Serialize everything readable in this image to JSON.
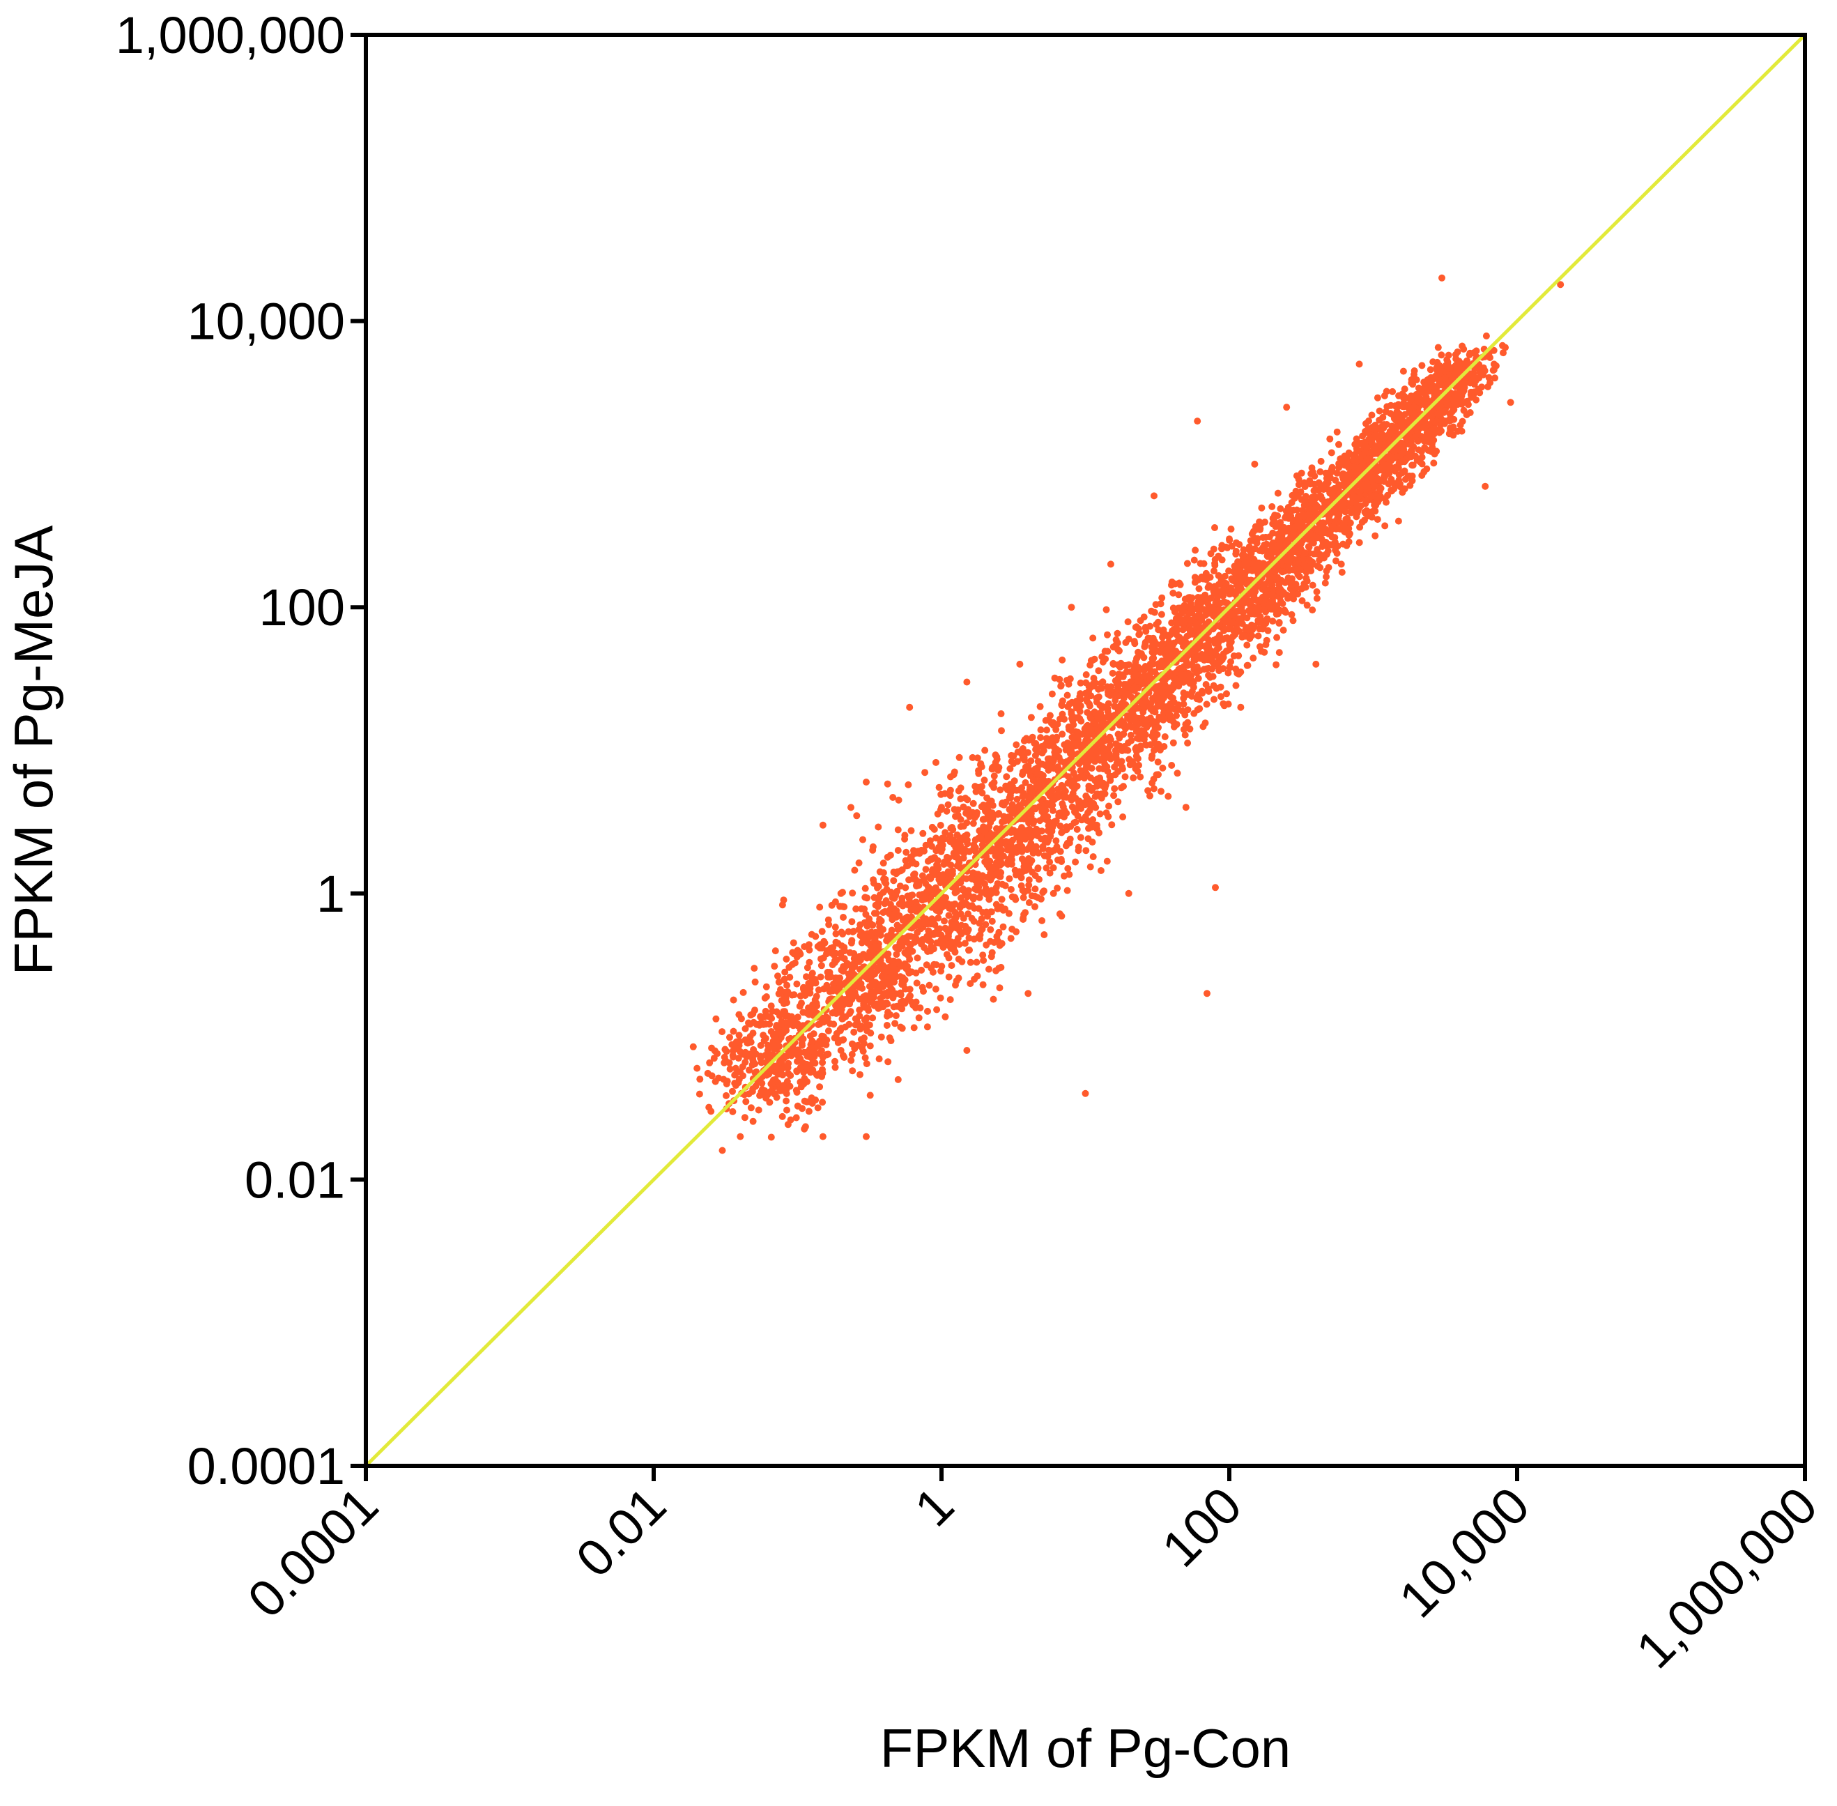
{
  "chart_data": {
    "type": "scatter",
    "title": "",
    "xlabel": "FPKM of Pg-Con",
    "ylabel": "FPKM of Pg-MeJA",
    "xscale": "log",
    "yscale": "log",
    "xlim": [
      0.0001,
      1000000
    ],
    "ylim": [
      0.0001,
      1000000
    ],
    "xticks": [
      0.0001,
      0.01,
      1,
      100,
      10000,
      1000000
    ],
    "xtick_labels": [
      "0.0001",
      "0.01",
      "1",
      "100",
      "10,000",
      "1,000,000"
    ],
    "yticks": [
      0.0001,
      0.01,
      1,
      100,
      10000,
      1000000
    ],
    "ytick_labels": [
      "0.0001",
      "0.01",
      "1",
      "100",
      "10,000",
      "1,000,000"
    ],
    "grid": false,
    "reference_line": {
      "type": "y=x",
      "color": "#e2ea3a"
    },
    "series": [
      {
        "color": "#ff5a2c",
        "note_points": "dense cloud of genes around y=x, approx. x 0.02–8000, y 0.015–20000",
        "points": [
          [
            0.02,
            0.06
          ],
          [
            0.025,
            0.03
          ],
          [
            0.03,
            0.016
          ],
          [
            0.04,
            0.02
          ],
          [
            0.05,
            0.3
          ],
          [
            0.06,
            0.15
          ],
          [
            0.07,
            0.05
          ],
          [
            0.08,
            0.9
          ],
          [
            0.1,
            0.4
          ],
          [
            0.12,
            0.03
          ],
          [
            0.15,
            0.02
          ],
          [
            0.15,
            3.0
          ],
          [
            0.2,
            0.08
          ],
          [
            0.2,
            1.0
          ],
          [
            0.3,
            0.02
          ],
          [
            0.3,
            6.0
          ],
          [
            0.4,
            0.3
          ],
          [
            0.5,
            2.0
          ],
          [
            0.5,
            0.05
          ],
          [
            0.6,
            20.0
          ],
          [
            0.7,
            0.8
          ],
          [
            0.8,
            0.15
          ],
          [
            1.0,
            4.0
          ],
          [
            1.2,
            0.6
          ],
          [
            1.5,
            0.08
          ],
          [
            1.5,
            30.0
          ],
          [
            2.0,
            10.0
          ],
          [
            2.5,
            0.3
          ],
          [
            3.0,
            2.0
          ],
          [
            3.5,
            40.0
          ],
          [
            4.0,
            0.2
          ],
          [
            5.0,
            8.0
          ],
          [
            6.0,
            1.0
          ],
          [
            8.0,
            100.0
          ],
          [
            10.0,
            0.04
          ],
          [
            10.0,
            25.0
          ],
          [
            12.0,
            3.0
          ],
          [
            15.0,
            200.0
          ],
          [
            20.0,
            60.0
          ],
          [
            20.0,
            1.0
          ],
          [
            30.0,
            600.0
          ],
          [
            30.0,
            10.0
          ],
          [
            40.0,
            150.0
          ],
          [
            50.0,
            4.0
          ],
          [
            60.0,
            2000.0
          ],
          [
            70.0,
            0.2
          ],
          [
            80.0,
            1.1
          ],
          [
            100.0,
            300.0
          ],
          [
            120.0,
            20.0
          ],
          [
            150.0,
            1000.0
          ],
          [
            200.0,
            80.0
          ],
          [
            250.0,
            2500.0
          ],
          [
            300.0,
            600.0
          ],
          [
            400.0,
            40.0
          ],
          [
            500.0,
            1500.0
          ],
          [
            600.0,
            200.0
          ],
          [
            800.0,
            5000.0
          ],
          [
            1000.0,
            600.0
          ],
          [
            1200.0,
            3000.0
          ],
          [
            1500.0,
            400.0
          ],
          [
            2000.0,
            1800.0
          ],
          [
            3000.0,
            2000.0
          ],
          [
            4000.0,
            5000.0
          ],
          [
            5000.0,
            6000.0
          ],
          [
            6000.0,
            700.0
          ],
          [
            7000.0,
            4000.0
          ],
          [
            8000.0,
            6000.0
          ],
          [
            3000.0,
            20000.0
          ],
          [
            20000.0,
            18000.0
          ],
          [
            9000.0,
            2700.0
          ]
        ]
      }
    ]
  }
}
